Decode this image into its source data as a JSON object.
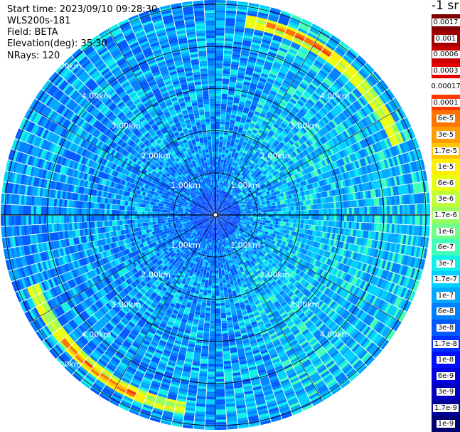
{
  "info": {
    "start_time": "Start time: 2023/09/10 09:28:30",
    "device": "WLS200s-181",
    "field": "Field: BETA",
    "elevation": "Elevation(deg): 35.30",
    "nrays": "NRays: 120"
  },
  "colorbar": {
    "unit": "-1 sr",
    "labels": [
      "0.0017",
      "0.001",
      "0.0006",
      "0.0003",
      "0.00017",
      "0.0001",
      "6e-5",
      "3e-5",
      "1.7e-5",
      "1e-5",
      "6e-6",
      "3e-6",
      "1.7e-6",
      "1e-6",
      "6e-7",
      "3e-7",
      "1.7e-7",
      "1e-7",
      "6e-8",
      "3e-8",
      "1.7e-8",
      "1e-8",
      "6e-9",
      "3e-9",
      "1.7e-9",
      "1e-9"
    ],
    "colors": [
      "#800000",
      "#a00000",
      "#c80000",
      "#e60000",
      "#ffffff",
      "#ff3a00",
      "#ff7400",
      "#ff9d00",
      "#ffc600",
      "#fff000",
      "#e8ff10",
      "#c0ff38",
      "#9aff5e",
      "#70ff88",
      "#40ffb8",
      "#10f0e8",
      "#00d0ff",
      "#00a8ff",
      "#0080ff",
      "#0058ff",
      "#0030ff",
      "#0010ff",
      "#0000e0",
      "#0000c0",
      "#000098",
      "#000070"
    ]
  },
  "chart_data": {
    "type": "heatmap",
    "projection": "polar PPI",
    "field": "BETA",
    "unit": "-1 sr",
    "elevation_deg": 35.3,
    "n_rays": 120,
    "range_rings_km": [
      1.0,
      2.0,
      3.0,
      4.0,
      5.0
    ],
    "ring_labels": [
      "1.00km",
      "2.00km",
      "3.00km",
      "4.00km",
      "5.00km"
    ],
    "max_range_km": 5.1,
    "gate_spacing_km": 0.03,
    "beta_color_scale": [
      0.0017,
      0.001,
      0.0006,
      0.0003,
      0.00017,
      0.0001,
      6e-05,
      3e-05,
      1.7e-05,
      1e-05,
      6e-06,
      3e-06,
      1.7e-06,
      1e-06,
      6e-07,
      3e-07,
      1.7e-07,
      1e-07,
      6e-08,
      3e-08,
      1.7e-08,
      1e-08,
      6e-09,
      3e-09,
      1.7e-09,
      1e-09
    ],
    "background_beta_range": [
      6e-08,
      1.7e-07
    ],
    "enhanced_band": {
      "range_km": [
        4.5,
        4.8
      ],
      "beta": 1.7e-05,
      "azimuths_deg": [
        10,
        70,
        190,
        250
      ]
    },
    "peak_band": {
      "range_km": [
        4.6,
        4.75
      ],
      "beta": 0.0001,
      "azimuths_deg": [
        15,
        35,
        205,
        230
      ]
    }
  }
}
